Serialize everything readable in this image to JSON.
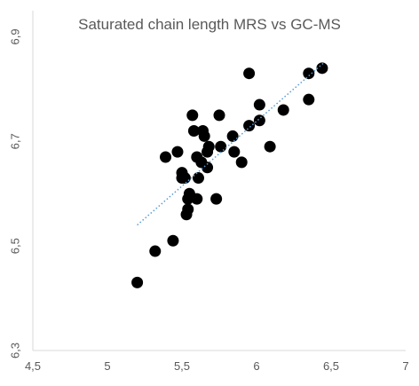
{
  "chart_data": {
    "type": "scatter",
    "title": "Saturated chain length MRS vs GC-MS",
    "xlabel": "",
    "ylabel": "",
    "xlim": [
      4.5,
      7
    ],
    "ylim": [
      6.3,
      6.95
    ],
    "x_ticks": [
      4.5,
      5,
      5.5,
      6,
      6.5,
      7
    ],
    "y_ticks": [
      6.3,
      6.5,
      6.7,
      6.9
    ],
    "x_tick_labels": [
      "4,5",
      "5",
      "5,5",
      "6",
      "6,5",
      "7"
    ],
    "y_tick_labels": [
      "6,3",
      "6,5",
      "6,7",
      "6,9"
    ],
    "grid": false,
    "legend": "none",
    "marker_color": "#000000",
    "trendline_color": "#5b9bd5",
    "trendline": {
      "style": "dotted",
      "x": [
        5.2,
        6.45
      ],
      "y": [
        6.54,
        6.85
      ]
    },
    "points": [
      {
        "x": 5.2,
        "y": 6.43
      },
      {
        "x": 5.32,
        "y": 6.49
      },
      {
        "x": 5.44,
        "y": 6.51
      },
      {
        "x": 5.39,
        "y": 6.67
      },
      {
        "x": 5.47,
        "y": 6.68
      },
      {
        "x": 5.5,
        "y": 6.63
      },
      {
        "x": 5.5,
        "y": 6.64
      },
      {
        "x": 5.52,
        "y": 6.63
      },
      {
        "x": 5.53,
        "y": 6.56
      },
      {
        "x": 5.54,
        "y": 6.57
      },
      {
        "x": 5.54,
        "y": 6.59
      },
      {
        "x": 5.55,
        "y": 6.6
      },
      {
        "x": 5.57,
        "y": 6.75
      },
      {
        "x": 5.58,
        "y": 6.72
      },
      {
        "x": 5.6,
        "y": 6.67
      },
      {
        "x": 5.6,
        "y": 6.59
      },
      {
        "x": 5.61,
        "y": 6.63
      },
      {
        "x": 5.63,
        "y": 6.66
      },
      {
        "x": 5.64,
        "y": 6.72
      },
      {
        "x": 5.65,
        "y": 6.71
      },
      {
        "x": 5.67,
        "y": 6.68
      },
      {
        "x": 5.67,
        "y": 6.65
      },
      {
        "x": 5.68,
        "y": 6.69
      },
      {
        "x": 5.73,
        "y": 6.59
      },
      {
        "x": 5.75,
        "y": 6.75
      },
      {
        "x": 5.76,
        "y": 6.69
      },
      {
        "x": 5.84,
        "y": 6.71
      },
      {
        "x": 5.85,
        "y": 6.68
      },
      {
        "x": 5.9,
        "y": 6.66
      },
      {
        "x": 5.95,
        "y": 6.83
      },
      {
        "x": 5.95,
        "y": 6.73
      },
      {
        "x": 6.02,
        "y": 6.74
      },
      {
        "x": 6.02,
        "y": 6.77
      },
      {
        "x": 6.09,
        "y": 6.69
      },
      {
        "x": 6.18,
        "y": 6.76
      },
      {
        "x": 6.35,
        "y": 6.78
      },
      {
        "x": 6.35,
        "y": 6.83
      },
      {
        "x": 6.44,
        "y": 6.84
      }
    ]
  }
}
